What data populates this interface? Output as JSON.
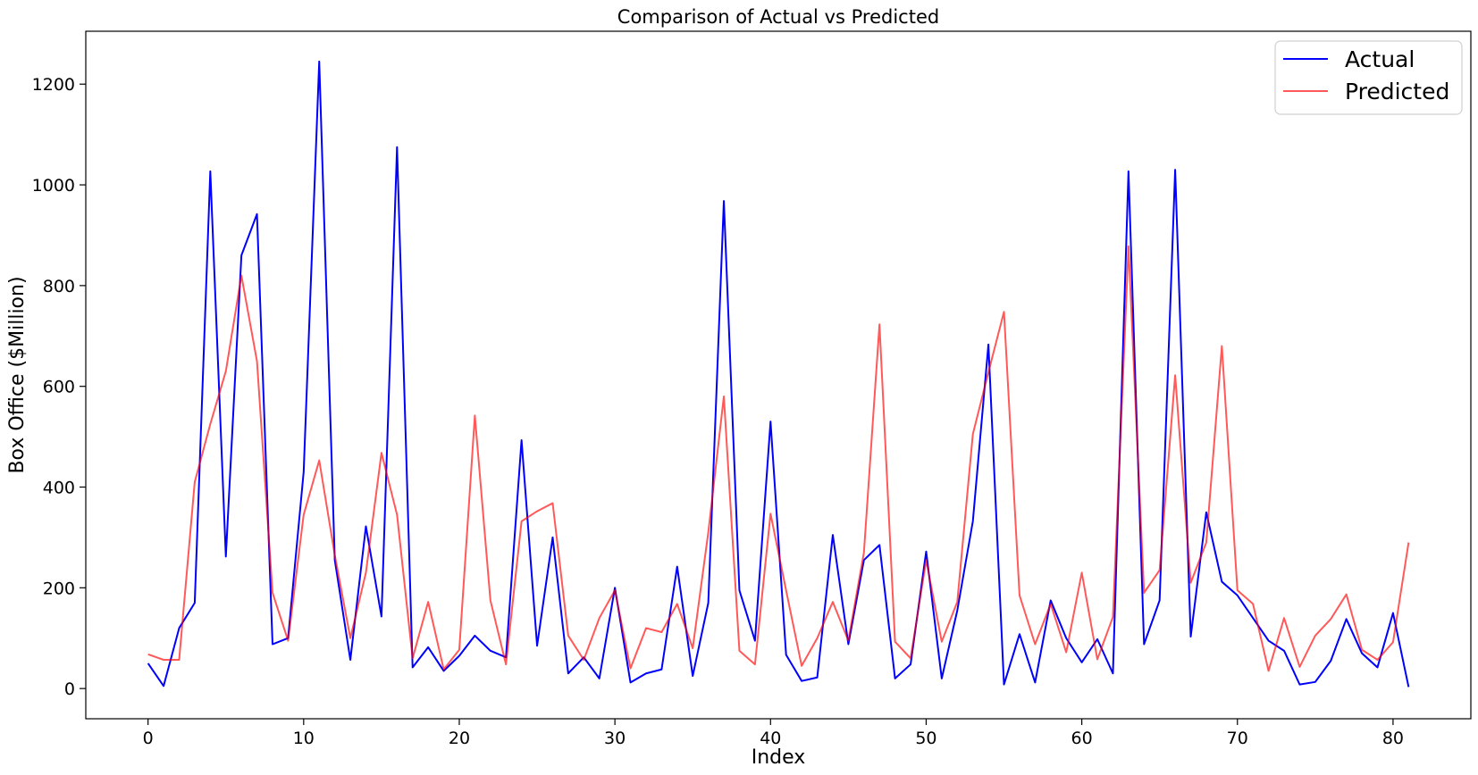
{
  "chart_data": {
    "type": "line",
    "title": "Comparison of Actual vs Predicted",
    "xlabel": "Index",
    "ylabel": "Box Office ($Million)",
    "xlim": [
      -4,
      85
    ],
    "ylim": [
      -60,
      1305
    ],
    "x_ticks": [
      0,
      10,
      20,
      30,
      40,
      50,
      60,
      70,
      80
    ],
    "y_ticks": [
      0,
      200,
      400,
      600,
      800,
      1000,
      1200
    ],
    "grid": false,
    "legend_position": "top-right",
    "series": [
      {
        "name": "Actual",
        "color": "#0000ff",
        "opacity": 1,
        "values": [
          50,
          5,
          120,
          170,
          1027,
          262,
          860,
          942,
          88,
          100,
          430,
          1245,
          255,
          57,
          322,
          143,
          1075,
          42,
          82,
          35,
          65,
          105,
          75,
          62,
          493,
          85,
          300,
          30,
          62,
          20,
          200,
          12,
          30,
          38,
          242,
          25,
          170,
          968,
          195,
          95,
          530,
          67,
          15,
          22,
          305,
          88,
          255,
          285,
          20,
          48,
          272,
          20,
          155,
          332,
          683,
          8,
          108,
          12,
          175,
          100,
          52,
          98,
          30,
          1027,
          88,
          175,
          1030,
          103,
          350,
          212,
          185,
          140,
          95,
          75,
          8,
          13,
          55,
          138,
          70,
          42,
          150,
          3
        ]
      },
      {
        "name": "Predicted",
        "color": "#ff0000",
        "opacity": 0.65,
        "values": [
          68,
          57,
          57,
          410,
          525,
          630,
          820,
          650,
          190,
          95,
          345,
          453,
          265,
          100,
          230,
          468,
          345,
          60,
          172,
          38,
          77,
          542,
          175,
          48,
          332,
          352,
          368,
          105,
          57,
          140,
          195,
          40,
          120,
          112,
          168,
          80,
          310,
          580,
          75,
          48,
          347,
          195,
          45,
          100,
          172,
          95,
          270,
          723,
          93,
          60,
          255,
          93,
          172,
          505,
          628,
          748,
          185,
          88,
          168,
          72,
          230,
          58,
          142,
          878,
          190,
          235,
          622,
          210,
          290,
          680,
          195,
          168,
          35,
          140,
          43,
          105,
          138,
          187,
          77,
          57,
          92,
          290
        ]
      }
    ]
  }
}
